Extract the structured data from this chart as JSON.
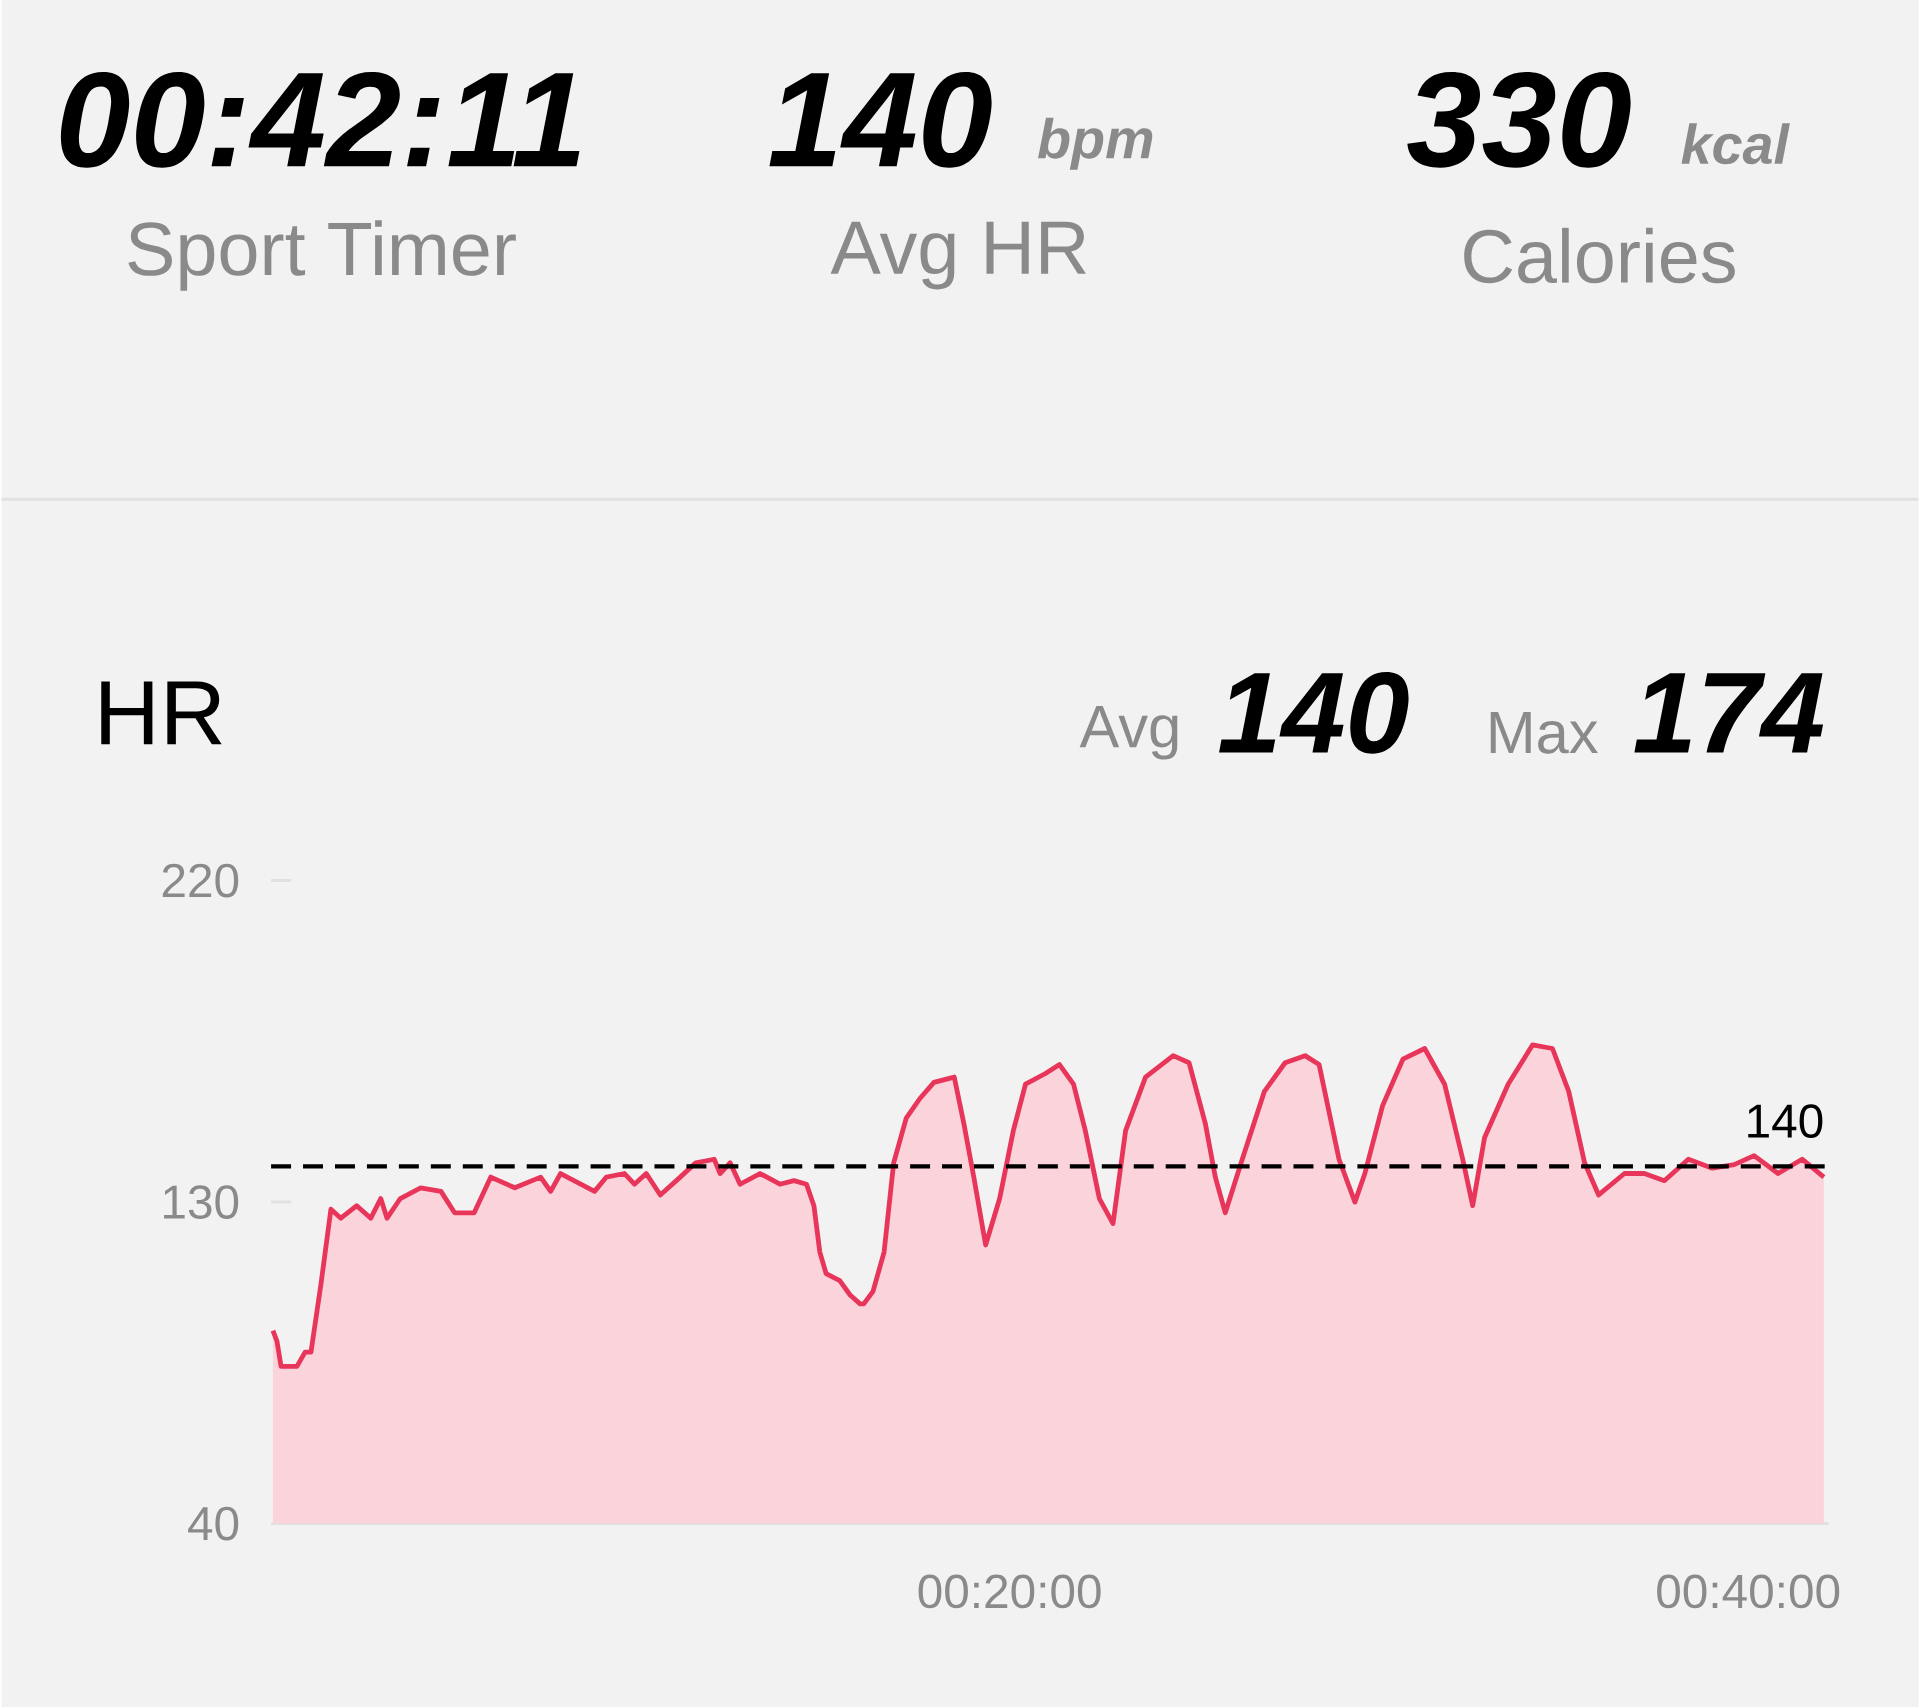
{
  "chart_data": {
    "type": "area",
    "title": "HR",
    "annotations": [
      "00:42:11",
      "Sport Timer",
      "140",
      "bpm",
      "Avg HR",
      "330",
      "kcal",
      "Calories",
      "Avg",
      "140",
      "Max",
      "174"
    ],
    "x": [
      0.05,
      0.16,
      0.27,
      0.7,
      0.92,
      1.08,
      1.35,
      1.62,
      1.89,
      2.32,
      2.7,
      2.97,
      3.14,
      3.5,
      4.05,
      4.6,
      4.97,
      5.5,
      5.95,
      6.6,
      7.3,
      7.57,
      7.84,
      8.76,
      9.08,
      9.57,
      9.84,
      10.16,
      10.54,
      11.08,
      11.5,
      12.0,
      12.16,
      12.43,
      12.7,
      13.24,
      13.78,
      14.16,
      14.5,
      14.7,
      14.86,
      15.03,
      15.4,
      15.68,
      15.95,
      16.05,
      16.3,
      16.6,
      16.86,
      17.2,
      17.57,
      17.95,
      18.5,
      18.76,
      19.03,
      19.35,
      19.73,
      20.1,
      20.43,
      20.97,
      21.35,
      21.73,
      22.05,
      22.43,
      22.8,
      23.14,
      23.68,
      24.43,
      24.86,
      25.3,
      25.57,
      25.84,
      26.3,
      26.9,
      27.46,
      28.0,
      28.38,
      28.92,
      29.35,
      29.62,
      30.1,
      30.65,
      31.24,
      31.78,
      32.27,
      32.54,
      32.86,
      33.5,
      34.16,
      34.7,
      35.14,
      35.57,
      35.95,
      36.65,
      37.19,
      37.73,
      38.38,
      39.03,
      39.62,
      40.16,
      40.81,
      41.46,
      42.05
    ],
    "series": [
      {
        "color": "#e8365a",
        "values": [
          94,
          91,
          84,
          84,
          88,
          88,
          107,
          128,
          125.5,
          129,
          125.5,
          131,
          125.5,
          131,
          134,
          133,
          127,
          127,
          137,
          134,
          137,
          133,
          138,
          133,
          137,
          138,
          135,
          138,
          132,
          137,
          141,
          142,
          138,
          141,
          135,
          138,
          135,
          136,
          135,
          129,
          116,
          110,
          108,
          104,
          101.5,
          101.5,
          105,
          116,
          141,
          153.5,
          159,
          163.5,
          165,
          152,
          137,
          118,
          131,
          150,
          163,
          166,
          168.5,
          163,
          150,
          131,
          124,
          150,
          165,
          171,
          169,
          152,
          137,
          127,
          142,
          161,
          169,
          171,
          168.5,
          142,
          130,
          138,
          157,
          170,
          173,
          163,
          142,
          129,
          148,
          163,
          174,
          173,
          161,
          141,
          132,
          138,
          138,
          136,
          142,
          139.5,
          140.5,
          143,
          138,
          142,
          137
        ]
      }
    ],
    "xlim": [
      0,
      42.18
    ],
    "xticks": [
      {
        "value": 20,
        "label": "00:20:00"
      },
      {
        "value": 40,
        "label": "00:40:00"
      }
    ],
    "ylim": [
      40,
      220
    ],
    "yticks": [
      40,
      130,
      220
    ],
    "ref_lines": [
      {
        "axis": "y",
        "value": 140,
        "label": "140",
        "color": "#000000",
        "line_style": "dashed"
      }
    ]
  }
}
